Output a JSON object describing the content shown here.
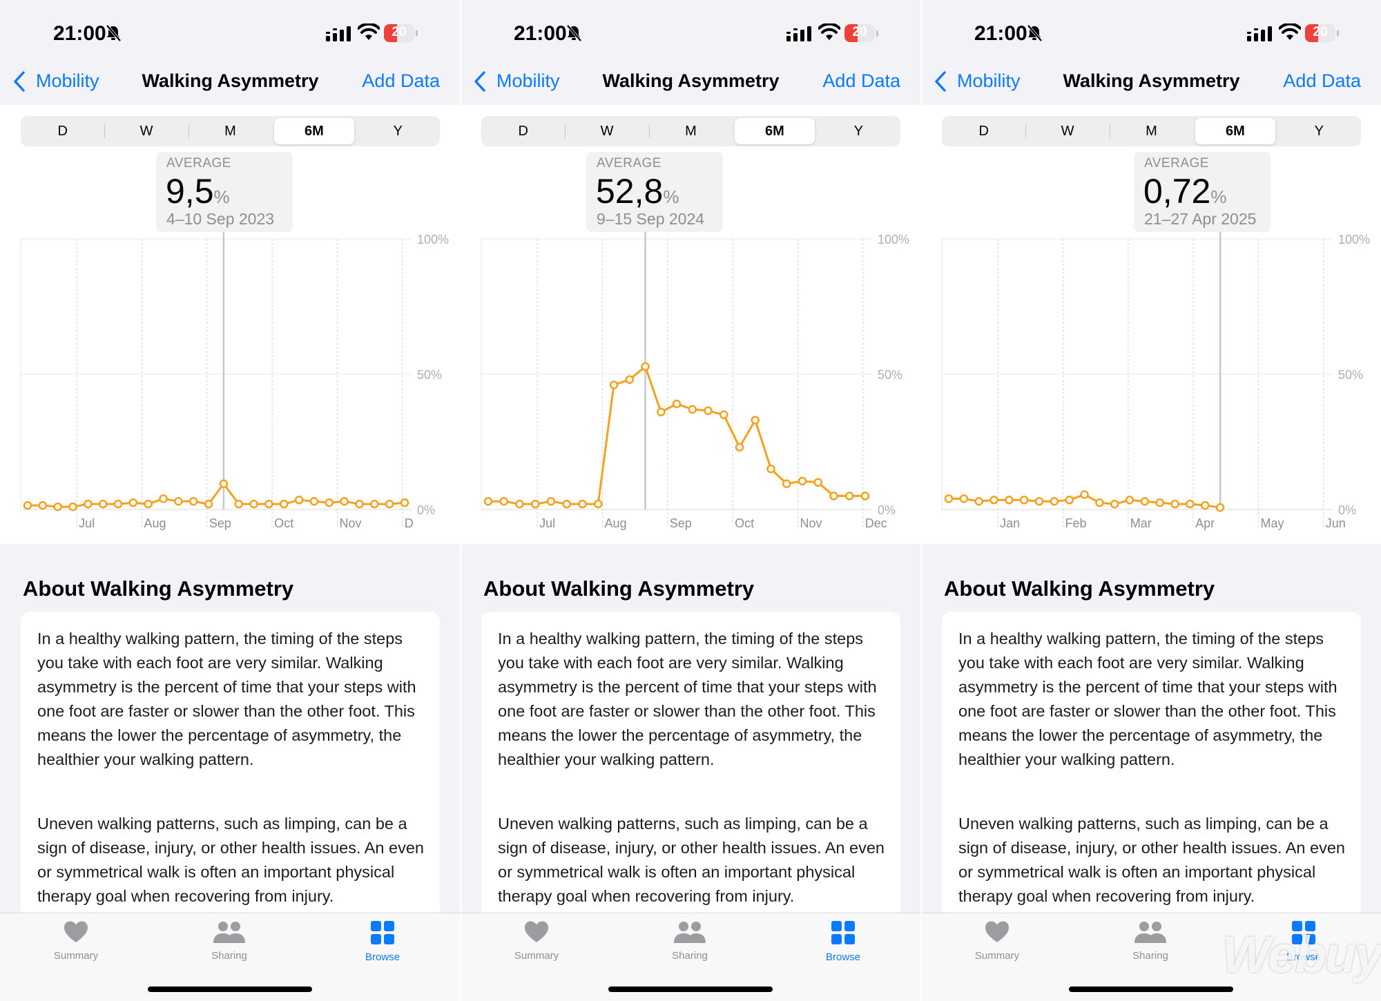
{
  "colors": {
    "accent": "#0a7aff",
    "line": "#f5a11c",
    "battery": "#f0403a"
  },
  "screens": [
    {
      "status": {
        "time": "21:00",
        "battery": "20"
      },
      "nav": {
        "back": "Mobility",
        "title": "Walking Asymmetry",
        "action": "Add Data"
      },
      "segments": [
        "D",
        "W",
        "M",
        "6M",
        "Y"
      ],
      "active_segment": "6M",
      "average": {
        "label": "AVERAGE",
        "value": "9,5",
        "unit": "%",
        "range": "4–10 Sep 2023"
      },
      "about": {
        "title": "About Walking Asymmetry",
        "p1": "In a healthy walking pattern, the timing of the steps you take with each foot are very similar. Walking asymmetry is the percent of time that your steps with one foot are faster or slower than the other foot. This means the lower the percentage of asymmetry, the healthier your walking pattern.",
        "p2": "Uneven walking patterns, such as limping, can be a sign of disease, injury, or other health issues. An even or symmetrical walk is often an important physical therapy goal when recovering from injury."
      },
      "tabs": [
        "Summary",
        "Sharing",
        "Browse"
      ],
      "active_tab": "Browse"
    },
    {
      "status": {
        "time": "21:00",
        "battery": "20"
      },
      "nav": {
        "back": "Mobility",
        "title": "Walking Asymmetry",
        "action": "Add Data"
      },
      "segments": [
        "D",
        "W",
        "M",
        "6M",
        "Y"
      ],
      "active_segment": "6M",
      "average": {
        "label": "AVERAGE",
        "value": "52,8",
        "unit": "%",
        "range": "9–15 Sep 2024"
      },
      "about": {
        "title": "About Walking Asymmetry",
        "p1": "In a healthy walking pattern, the timing of the steps you take with each foot are very similar. Walking asymmetry is the percent of time that your steps with one foot are faster or slower than the other foot. This means the lower the percentage of asymmetry, the healthier your walking pattern.",
        "p2": "Uneven walking patterns, such as limping, can be a sign of disease, injury, or other health issues. An even or symmetrical walk is often an important physical therapy goal when recovering from injury."
      },
      "tabs": [
        "Summary",
        "Sharing",
        "Browse"
      ],
      "active_tab": "Browse"
    },
    {
      "status": {
        "time": "21:00",
        "battery": "20"
      },
      "nav": {
        "back": "Mobility",
        "title": "Walking Asymmetry",
        "action": "Add Data"
      },
      "segments": [
        "D",
        "W",
        "M",
        "6M",
        "Y"
      ],
      "active_segment": "6M",
      "average": {
        "label": "AVERAGE",
        "value": "0,72",
        "unit": "%",
        "range": "21–27 Apr 2025"
      },
      "about": {
        "title": "About Walking Asymmetry",
        "p1": "In a healthy walking pattern, the timing of the steps you take with each foot are very similar. Walking asymmetry is the percent of time that your steps with one foot are faster or slower than the other foot. This means the lower the percentage of asymmetry, the healthier your walking pattern.",
        "p2": "Uneven walking patterns, such as limping, can be a sign of disease, injury, or other health issues. An even or symmetrical walk is often an important physical therapy goal when recovering from injury."
      },
      "tabs": [
        "Summary",
        "Sharing",
        "Browse"
      ],
      "active_tab": "Browse"
    }
  ],
  "chart_data": [
    {
      "type": "line",
      "ylim": [
        0,
        100
      ],
      "yticks": [
        "100%",
        "50%",
        "0%"
      ],
      "months": [
        "Jul",
        "Aug",
        "Sep",
        "Oct",
        "Nov",
        "D"
      ],
      "values": [
        1.5,
        1.5,
        1,
        1,
        2,
        2,
        2,
        2.5,
        2,
        4,
        3,
        3,
        2,
        9.5,
        2,
        2,
        2,
        2,
        3.5,
        3,
        2.5,
        3,
        2,
        2,
        2,
        2.5
      ],
      "selected_index": 13
    },
    {
      "type": "line",
      "ylim": [
        0,
        100
      ],
      "yticks": [
        "100%",
        "50%",
        "0%"
      ],
      "months": [
        "Jul",
        "Aug",
        "Sep",
        "Oct",
        "Nov",
        "Dec"
      ],
      "values": [
        3,
        3,
        2,
        2,
        3,
        2,
        2,
        2,
        46,
        48,
        52.8,
        36,
        39,
        37,
        36.5,
        35,
        23,
        33,
        15,
        9.5,
        10.5,
        10,
        5,
        5,
        5
      ],
      "selected_index": 10
    },
    {
      "type": "line",
      "ylim": [
        0,
        100
      ],
      "yticks": [
        "100%",
        "50%",
        "0%"
      ],
      "months": [
        "Jan",
        "Feb",
        "Mar",
        "Apr",
        "May",
        "Jun"
      ],
      "values": [
        4,
        4,
        3,
        3.5,
        3.5,
        3.5,
        3,
        3,
        3.5,
        5.5,
        2.5,
        2,
        3.5,
        3,
        2.5,
        2,
        2,
        1.5,
        0.72
      ],
      "selected_index": 18
    }
  ],
  "watermark": "Webuy"
}
